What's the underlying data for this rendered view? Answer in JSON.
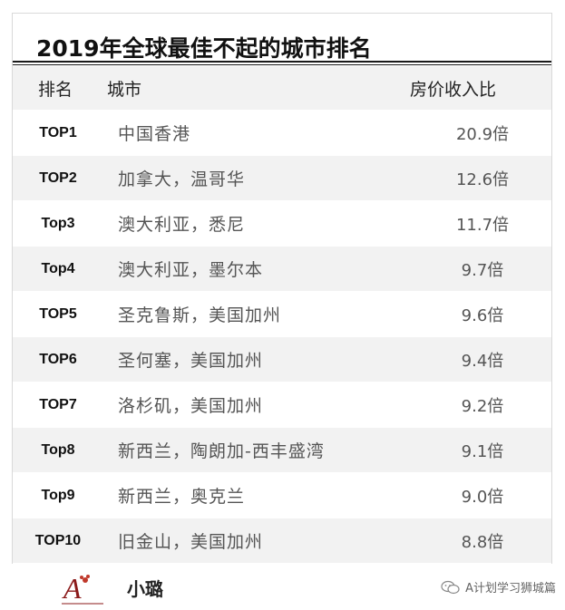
{
  "title": "2019年全球最佳不起的城市排名",
  "header": {
    "rank": "排名",
    "city": "城市",
    "ratio": "房价收入比"
  },
  "rows": [
    {
      "rank": "TOP1",
      "city": "中国香港",
      "ratio": "20.9倍"
    },
    {
      "rank": "TOP2",
      "city": "加拿大，温哥华",
      "ratio": "12.6倍"
    },
    {
      "rank": "Top3",
      "city": "澳大利亚，悉尼",
      "ratio": "11.7倍"
    },
    {
      "rank": "Top4",
      "city": "澳大利亚，墨尔本",
      "ratio": "9.7倍"
    },
    {
      "rank": "TOP5",
      "city": "圣克鲁斯，美国加州",
      "ratio": "9.6倍"
    },
    {
      "rank": "TOP6",
      "city": "圣何塞，美国加州",
      "ratio": "9.4倍"
    },
    {
      "rank": "TOP7",
      "city": "洛杉矶，美国加州",
      "ratio": "9.2倍"
    },
    {
      "rank": "Top8",
      "city": "新西兰，陶朗加-西丰盛湾",
      "ratio": "9.1倍"
    },
    {
      "rank": "Top9",
      "city": "新西兰，奥克兰",
      "ratio": "9.0倍"
    },
    {
      "rank": "TOP10",
      "city": "旧金山，美国加州",
      "ratio": "8.8倍"
    }
  ],
  "footer": {
    "logo_label": "小璐",
    "watermark": "A计划学习狮城篇",
    "icon": "wechat-icon"
  },
  "colors": {
    "shaded_row": "#f2f2f2",
    "logo_red": "#c0392b"
  }
}
